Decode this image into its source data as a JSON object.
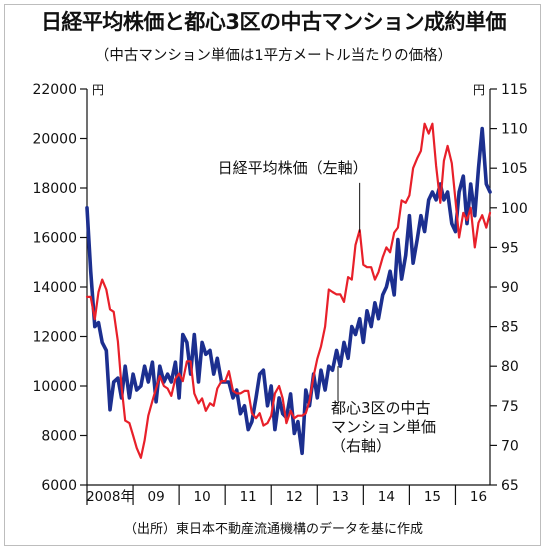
{
  "title": "日経平均株価と都心3区の中古マンション成約単価",
  "subtitle": "（中古マンション単価は1平方メートル当たりの価格）",
  "source": "（出所）東日本不動産流通機構のデータを基に作成",
  "colors": {
    "nikkei": "#e8202a",
    "condo": "#1c2f8f",
    "axis": "#111111"
  },
  "chart_data": {
    "type": "line",
    "x_range": [
      2008.0,
      2016.75
    ],
    "left_axis": {
      "unit": "円",
      "min": 6000,
      "max": 22000,
      "ticks": [
        6000,
        8000,
        10000,
        12000,
        14000,
        16000,
        18000,
        20000,
        22000
      ]
    },
    "right_axis": {
      "unit": "円",
      "min": 65,
      "max": 115,
      "ticks": [
        65,
        70,
        75,
        80,
        85,
        90,
        95,
        100,
        105,
        110,
        115
      ]
    },
    "x_labels": [
      {
        "text": "2008年",
        "x": 2008.5
      },
      {
        "text": "09",
        "x": 2009.5
      },
      {
        "text": "10",
        "x": 2010.5
      },
      {
        "text": "11",
        "x": 2011.5
      },
      {
        "text": "12",
        "x": 2012.5
      },
      {
        "text": "13",
        "x": 2013.5
      },
      {
        "text": "14",
        "x": 2014.5
      },
      {
        "text": "15",
        "x": 2015.5
      },
      {
        "text": "16",
        "x": 2016.5
      }
    ],
    "annotations": [
      {
        "lines": [
          "日経平均株価（左軸）"
        ],
        "series": "nikkei",
        "target": [
          2013.92,
          16200
        ],
        "label_at": [
          2013.92,
          18450
        ]
      },
      {
        "lines": [
          "都心3区の中古",
          "マンション単価",
          "（右軸）"
        ],
        "series": "condo",
        "target": [
          2013.45,
          80
        ],
        "label_at": [
          2013.45,
          8900
        ]
      }
    ],
    "series": [
      {
        "name": "日経平均株価（左軸）",
        "axis": "left",
        "points": [
          [
            2008.0,
            13600
          ],
          [
            2008.08,
            13600
          ],
          [
            2008.17,
            12700
          ],
          [
            2008.25,
            13800
          ],
          [
            2008.33,
            14300
          ],
          [
            2008.42,
            13900
          ],
          [
            2008.5,
            13100
          ],
          [
            2008.58,
            13000
          ],
          [
            2008.67,
            11800
          ],
          [
            2008.75,
            10000
          ],
          [
            2008.83,
            8600
          ],
          [
            2008.92,
            8500
          ],
          [
            2009.0,
            8000
          ],
          [
            2009.08,
            7500
          ],
          [
            2009.17,
            7100
          ],
          [
            2009.25,
            7800
          ],
          [
            2009.33,
            8800
          ],
          [
            2009.42,
            9400
          ],
          [
            2009.5,
            9900
          ],
          [
            2009.58,
            10400
          ],
          [
            2009.67,
            10000
          ],
          [
            2009.75,
            9900
          ],
          [
            2009.83,
            9600
          ],
          [
            2009.92,
            10300
          ],
          [
            2010.0,
            10500
          ],
          [
            2010.08,
            10200
          ],
          [
            2010.17,
            11000
          ],
          [
            2010.25,
            11000
          ],
          [
            2010.33,
            9700
          ],
          [
            2010.42,
            9300
          ],
          [
            2010.5,
            9500
          ],
          [
            2010.58,
            9000
          ],
          [
            2010.67,
            9300
          ],
          [
            2010.75,
            9200
          ],
          [
            2010.83,
            9900
          ],
          [
            2010.92,
            10200
          ],
          [
            2011.0,
            10200
          ],
          [
            2011.08,
            10600
          ],
          [
            2011.17,
            9800
          ],
          [
            2011.25,
            9700
          ],
          [
            2011.33,
            9700
          ],
          [
            2011.42,
            9800
          ],
          [
            2011.5,
            9800
          ],
          [
            2011.58,
            8900
          ],
          [
            2011.67,
            8700
          ],
          [
            2011.75,
            8900
          ],
          [
            2011.83,
            8400
          ],
          [
            2011.92,
            8500
          ],
          [
            2012.0,
            8800
          ],
          [
            2012.08,
            9700
          ],
          [
            2012.17,
            10000
          ],
          [
            2012.25,
            9500
          ],
          [
            2012.33,
            8500
          ],
          [
            2012.42,
            9000
          ],
          [
            2012.5,
            8700
          ],
          [
            2012.58,
            8800
          ],
          [
            2012.67,
            8800
          ],
          [
            2012.75,
            8900
          ],
          [
            2012.83,
            9400
          ],
          [
            2012.92,
            10400
          ],
          [
            2013.0,
            11100
          ],
          [
            2013.08,
            11600
          ],
          [
            2013.17,
            12400
          ],
          [
            2013.25,
            13900
          ],
          [
            2013.33,
            13800
          ],
          [
            2013.42,
            13700
          ],
          [
            2013.5,
            13700
          ],
          [
            2013.58,
            13400
          ],
          [
            2013.67,
            14400
          ],
          [
            2013.75,
            14300
          ],
          [
            2013.83,
            15700
          ],
          [
            2013.92,
            16300
          ],
          [
            2014.0,
            14900
          ],
          [
            2014.08,
            14800
          ],
          [
            2014.17,
            14800
          ],
          [
            2014.25,
            14300
          ],
          [
            2014.33,
            14600
          ],
          [
            2014.42,
            15200
          ],
          [
            2014.5,
            15600
          ],
          [
            2014.58,
            15400
          ],
          [
            2014.67,
            16200
          ],
          [
            2014.75,
            16400
          ],
          [
            2014.83,
            17500
          ],
          [
            2014.92,
            17400
          ],
          [
            2015.0,
            17700
          ],
          [
            2015.08,
            18800
          ],
          [
            2015.17,
            19200
          ],
          [
            2015.25,
            19500
          ],
          [
            2015.33,
            20600
          ],
          [
            2015.42,
            20200
          ],
          [
            2015.5,
            20600
          ],
          [
            2015.58,
            18900
          ],
          [
            2015.67,
            17400
          ],
          [
            2015.75,
            19100
          ],
          [
            2015.83,
            19700
          ],
          [
            2015.92,
            19000
          ],
          [
            2016.0,
            17500
          ],
          [
            2016.08,
            16000
          ],
          [
            2016.17,
            17000
          ],
          [
            2016.25,
            16700
          ],
          [
            2016.33,
            17200
          ],
          [
            2016.42,
            15600
          ],
          [
            2016.5,
            16600
          ],
          [
            2016.58,
            16900
          ],
          [
            2016.67,
            16400
          ],
          [
            2016.75,
            17000
          ]
        ]
      },
      {
        "name": "都心3区の中古マンション単価（右軸）",
        "axis": "right",
        "points": [
          [
            2008.0,
            100
          ],
          [
            2008.08,
            92
          ],
          [
            2008.17,
            85
          ],
          [
            2008.25,
            85.5
          ],
          [
            2008.33,
            83
          ],
          [
            2008.42,
            82
          ],
          [
            2008.5,
            74.5
          ],
          [
            2008.58,
            78
          ],
          [
            2008.67,
            78.5
          ],
          [
            2008.75,
            76
          ],
          [
            2008.83,
            80
          ],
          [
            2008.92,
            76
          ],
          [
            2009.0,
            79
          ],
          [
            2009.08,
            77
          ],
          [
            2009.17,
            77.5
          ],
          [
            2009.25,
            80
          ],
          [
            2009.33,
            78
          ],
          [
            2009.42,
            80.5
          ],
          [
            2009.5,
            75.5
          ],
          [
            2009.58,
            80
          ],
          [
            2009.67,
            78
          ],
          [
            2009.75,
            79
          ],
          [
            2009.83,
            78
          ],
          [
            2009.92,
            80.5
          ],
          [
            2010.0,
            76
          ],
          [
            2010.08,
            84
          ],
          [
            2010.17,
            83
          ],
          [
            2010.25,
            79
          ],
          [
            2010.33,
            84
          ],
          [
            2010.42,
            78
          ],
          [
            2010.5,
            83
          ],
          [
            2010.58,
            81.5
          ],
          [
            2010.67,
            82
          ],
          [
            2010.75,
            79
          ],
          [
            2010.83,
            81
          ],
          [
            2010.92,
            78
          ],
          [
            2011.0,
            78
          ],
          [
            2011.08,
            78
          ],
          [
            2011.17,
            76
          ],
          [
            2011.25,
            77
          ],
          [
            2011.33,
            74
          ],
          [
            2011.42,
            75
          ],
          [
            2011.5,
            72
          ],
          [
            2011.58,
            73
          ],
          [
            2011.67,
            76
          ],
          [
            2011.75,
            79
          ],
          [
            2011.83,
            79.5
          ],
          [
            2011.92,
            75
          ],
          [
            2012.0,
            77.5
          ],
          [
            2012.08,
            72
          ],
          [
            2012.17,
            76
          ],
          [
            2012.25,
            74
          ],
          [
            2012.33,
            73.5
          ],
          [
            2012.42,
            76.5
          ],
          [
            2012.5,
            71.5
          ],
          [
            2012.58,
            73
          ],
          [
            2012.67,
            69
          ],
          [
            2012.75,
            77
          ],
          [
            2012.83,
            75
          ],
          [
            2012.92,
            79
          ],
          [
            2013.0,
            76
          ],
          [
            2013.08,
            79.5
          ],
          [
            2013.17,
            77
          ],
          [
            2013.25,
            80
          ],
          [
            2013.33,
            79.5
          ],
          [
            2013.42,
            82
          ],
          [
            2013.5,
            80
          ],
          [
            2013.58,
            83
          ],
          [
            2013.67,
            81
          ],
          [
            2013.75,
            85
          ],
          [
            2013.83,
            84
          ],
          [
            2013.92,
            86
          ],
          [
            2014.0,
            83
          ],
          [
            2014.08,
            87
          ],
          [
            2014.17,
            85
          ],
          [
            2014.25,
            88
          ],
          [
            2014.33,
            86
          ],
          [
            2014.42,
            89
          ],
          [
            2014.5,
            90
          ],
          [
            2014.58,
            92
          ],
          [
            2014.67,
            89
          ],
          [
            2014.75,
            96
          ],
          [
            2014.83,
            91
          ],
          [
            2014.92,
            94
          ],
          [
            2015.0,
            99
          ],
          [
            2015.08,
            93
          ],
          [
            2015.17,
            96
          ],
          [
            2015.25,
            99
          ],
          [
            2015.33,
            97
          ],
          [
            2015.42,
            101
          ],
          [
            2015.5,
            102
          ],
          [
            2015.58,
            101
          ],
          [
            2015.67,
            103
          ],
          [
            2015.75,
            101
          ],
          [
            2015.83,
            102
          ],
          [
            2015.92,
            98
          ],
          [
            2016.0,
            97
          ],
          [
            2016.08,
            102
          ],
          [
            2016.17,
            104
          ],
          [
            2016.25,
            98
          ],
          [
            2016.33,
            103
          ],
          [
            2016.42,
            99
          ],
          [
            2016.5,
            105
          ],
          [
            2016.58,
            110
          ],
          [
            2016.67,
            103
          ],
          [
            2016.75,
            102
          ]
        ]
      }
    ]
  }
}
